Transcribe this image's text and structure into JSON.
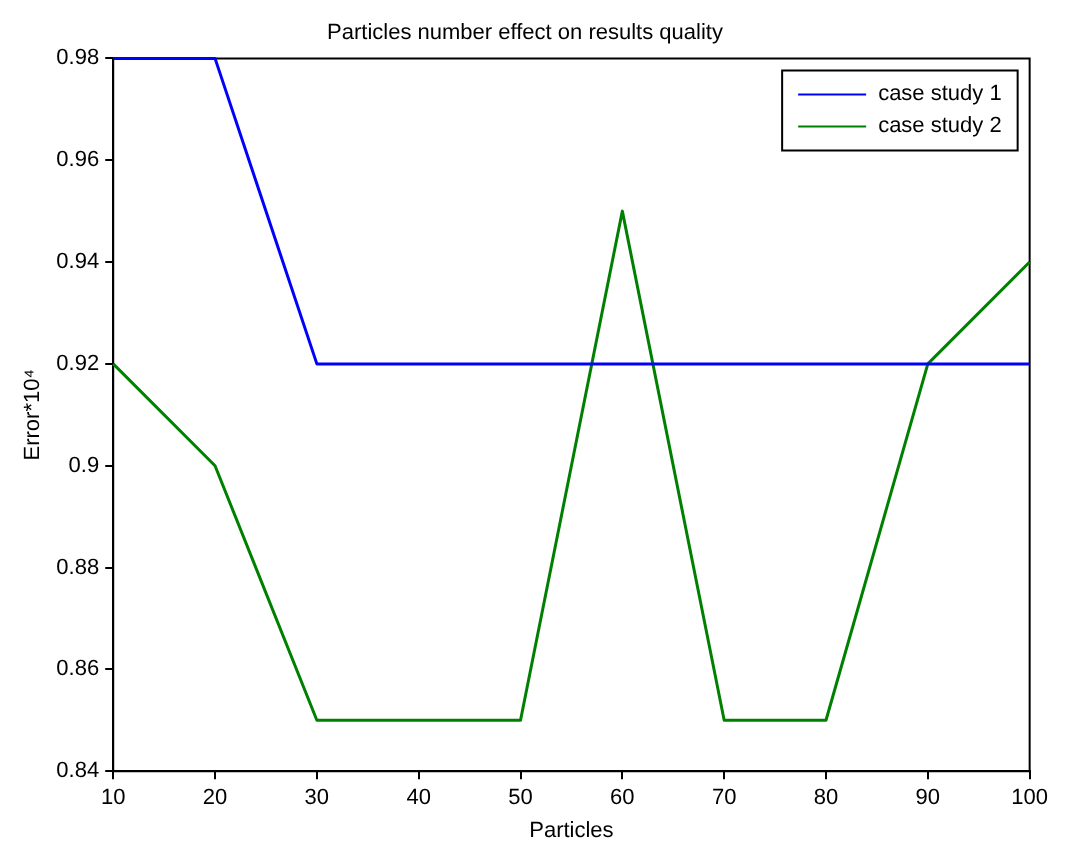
{
  "chart_data": {
    "type": "line",
    "title": "Particles number effect on results quality",
    "xlabel": "Particles",
    "ylabel": "Error*10⁴",
    "x": [
      10,
      20,
      30,
      40,
      50,
      60,
      70,
      80,
      90,
      100
    ],
    "series": [
      {
        "name": "case study 1",
        "color": "#0000ff",
        "values": [
          0.98,
          0.98,
          0.92,
          0.92,
          0.92,
          0.92,
          0.92,
          0.92,
          0.92,
          0.92
        ]
      },
      {
        "name": "case study 2",
        "color": "#008000",
        "values": [
          0.92,
          0.9,
          0.85,
          0.85,
          0.85,
          0.95,
          0.85,
          0.85,
          0.92,
          0.94
        ]
      }
    ],
    "xlim": [
      10,
      100
    ],
    "xticks": [
      10,
      20,
      30,
      40,
      50,
      60,
      70,
      80,
      90,
      100
    ],
    "ylim": [
      0.84,
      0.98
    ],
    "yticks": [
      0.84,
      0.86,
      0.88,
      0.9,
      0.92,
      0.94,
      0.96,
      0.98
    ],
    "grid": false,
    "legend": "top right",
    "marker": "none",
    "line_style": "solid"
  }
}
